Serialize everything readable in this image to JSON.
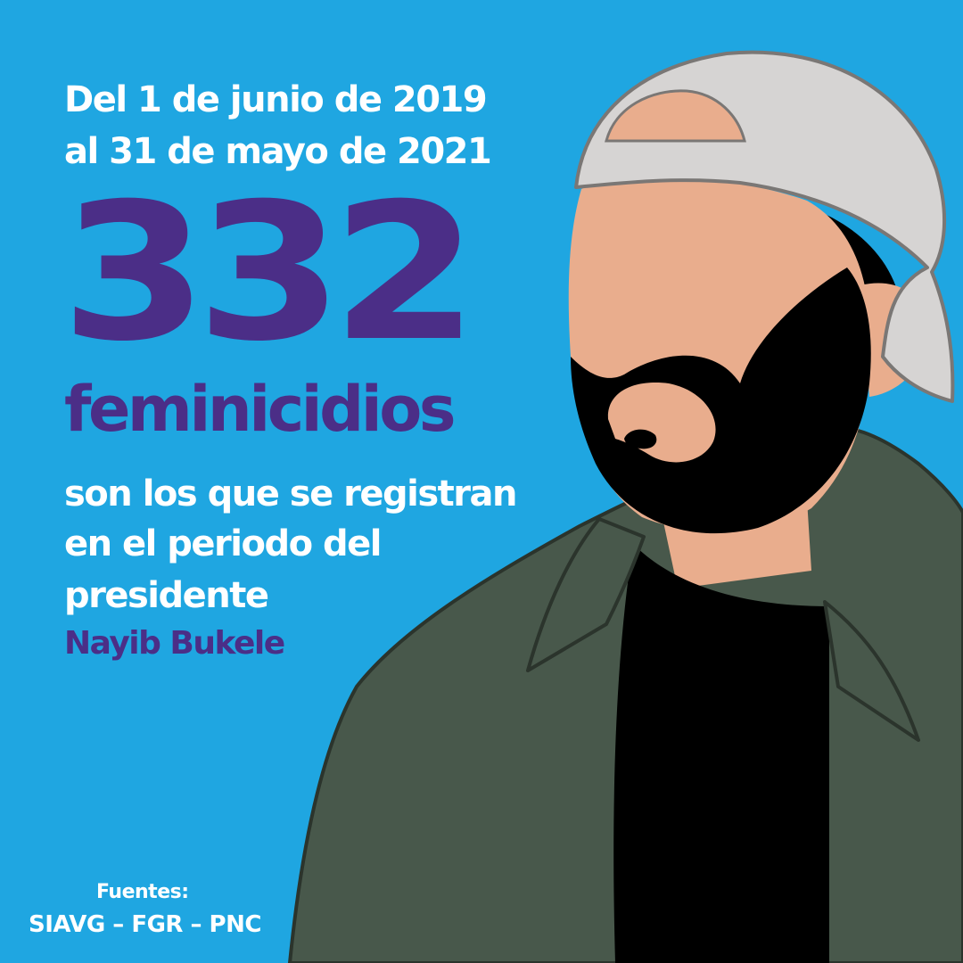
{
  "post": {
    "date_line_1": "Del 1 de junio de 2019",
    "date_line_2": "al 31 de mayo de 2021",
    "count": "332",
    "count_label": "feminicidios",
    "desc_line_1": "son los que se registran",
    "desc_line_2": "en el periodo del",
    "desc_line_3": "presidente",
    "name": "Nayib Bukele"
  },
  "sources": {
    "label": "Fuentes:",
    "list": "SIAVG – FGR – PNC"
  },
  "colors": {
    "background": "#1fa6e1",
    "accent_purple": "#4b2e87",
    "text_white": "#ffffff",
    "jacket": "#48584b",
    "skin": "#e9ad8d",
    "cap": "#d6d4d3",
    "beard": "#000000"
  },
  "illustration": {
    "icon": "man-with-backwards-cap-and-beard"
  }
}
